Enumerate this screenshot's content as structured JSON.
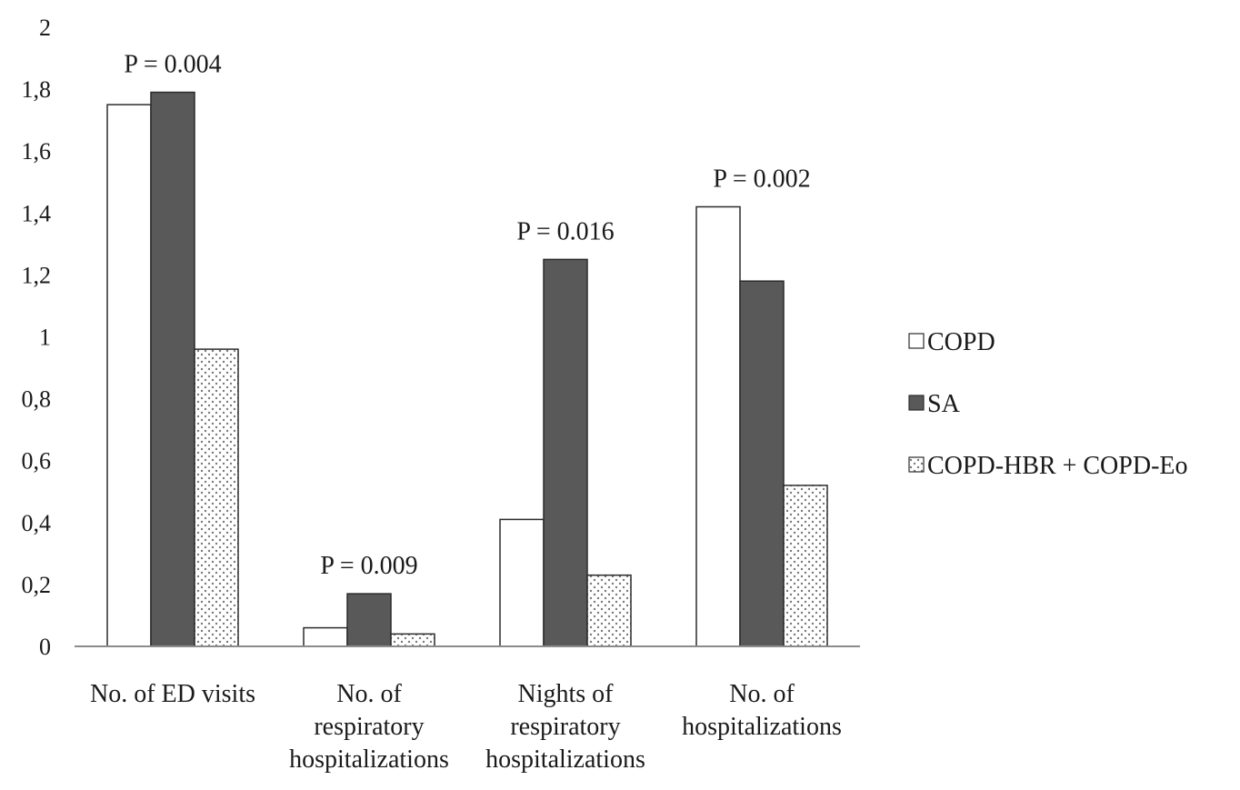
{
  "chart_data": {
    "type": "bar",
    "categories": [
      [
        "No. of ED visits"
      ],
      [
        "No. of",
        "respiratory",
        "hospitalizations"
      ],
      [
        "Nights of",
        "respiratory",
        "hospitalizations"
      ],
      [
        "No. of",
        "hospitalizations"
      ]
    ],
    "series": [
      {
        "name": "COPD",
        "values": [
          1.75,
          0.06,
          0.41,
          1.42
        ],
        "color": "#ffffff",
        "pattern": "none"
      },
      {
        "name": "SA",
        "values": [
          1.79,
          0.17,
          1.25,
          1.18
        ],
        "color": "#595959",
        "pattern": "none"
      },
      {
        "name": "COPD-HBR + COPD-Eo",
        "values": [
          0.96,
          0.04,
          0.23,
          0.52
        ],
        "color": "#ffffff",
        "pattern": "dots"
      }
    ],
    "annotations": [
      "P = 0.004",
      "P = 0.009",
      "P = 0.016",
      "P = 0.002"
    ],
    "ylim": [
      0,
      2
    ],
    "yticks": [
      "0",
      "0,2",
      "0,4",
      "0,6",
      "0,8",
      "1",
      "1,2",
      "1,4",
      "1,6",
      "1,8",
      "2"
    ],
    "title": "",
    "xlabel": "",
    "ylabel": "",
    "legend_position": "right",
    "grid": false
  }
}
